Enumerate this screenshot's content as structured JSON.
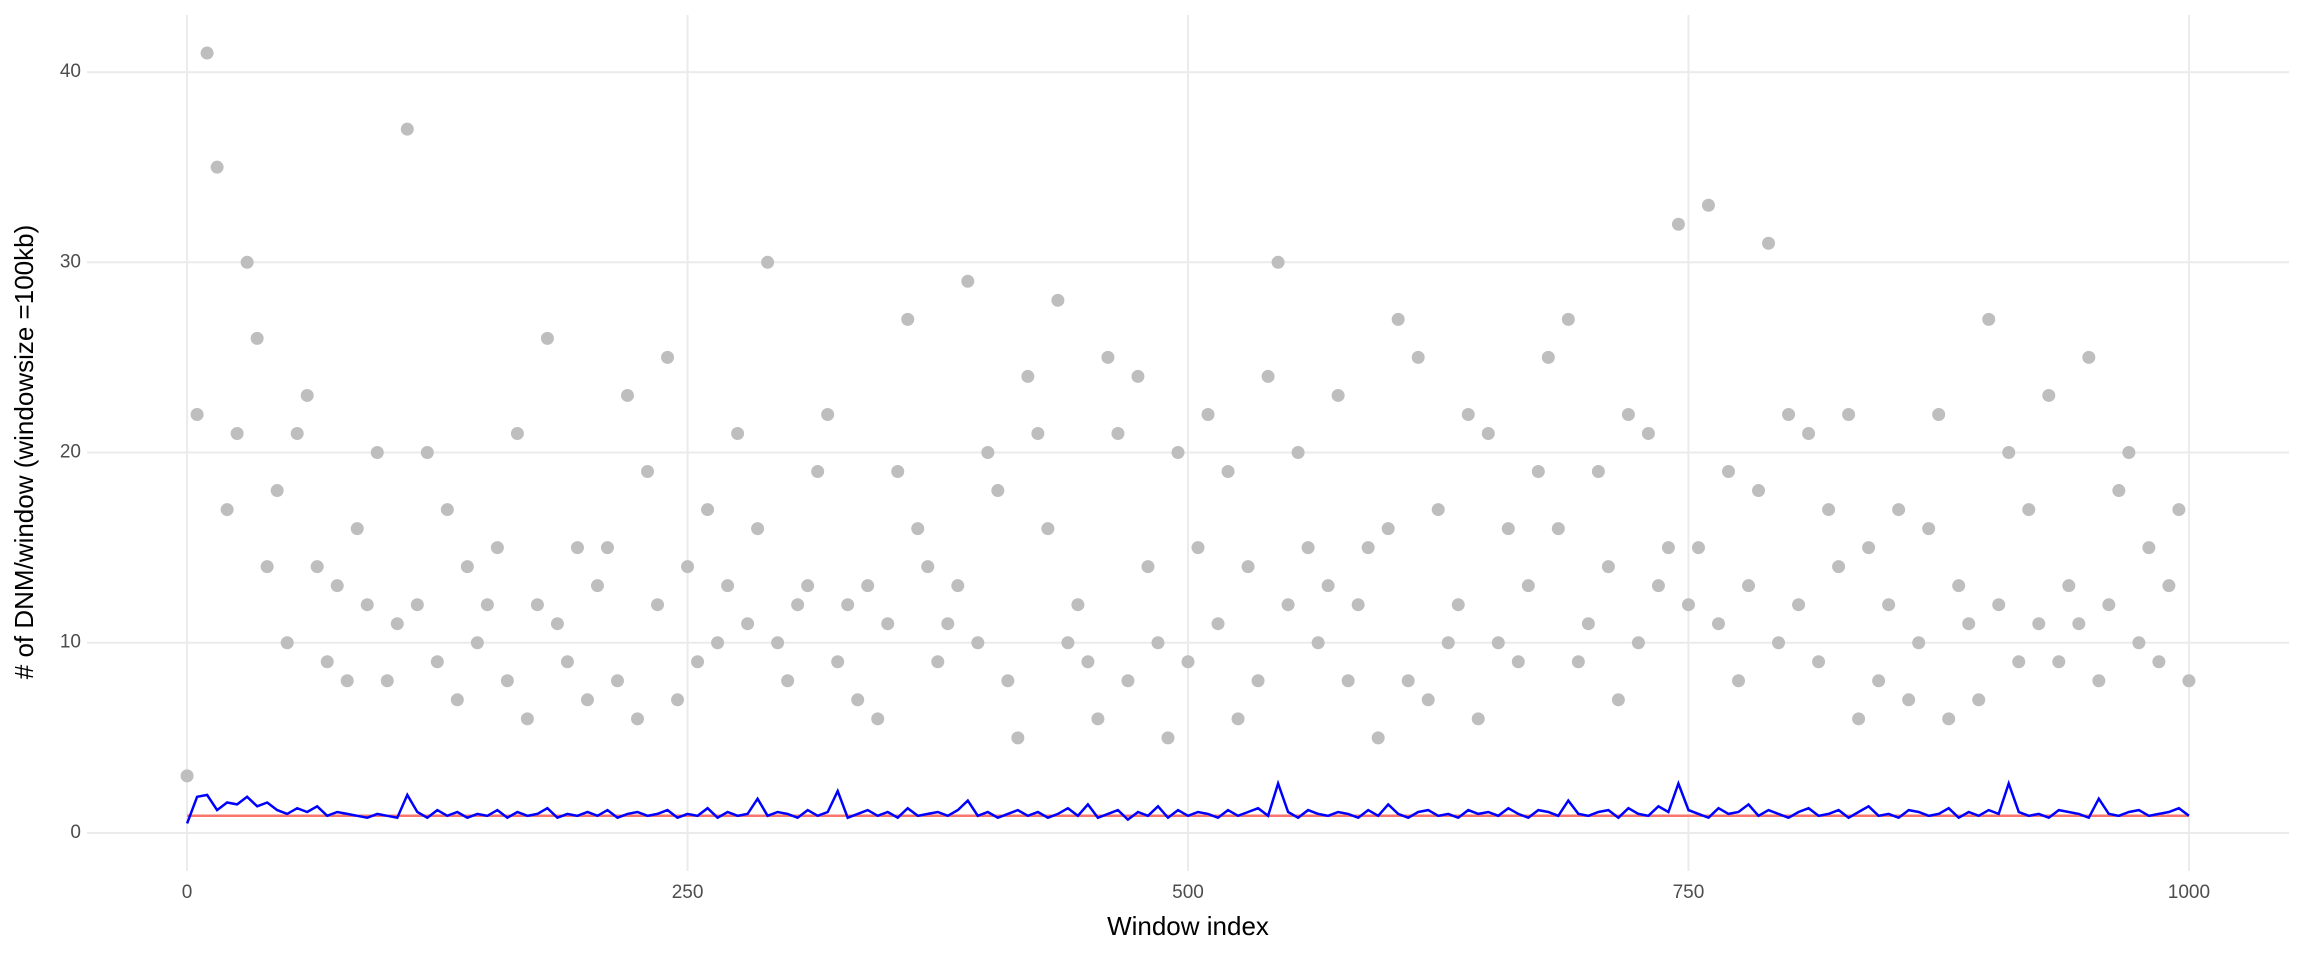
{
  "chart_data": {
    "type": "scatter",
    "x_label": "Window index",
    "y_label": "# of DNM/window (windowsize =100kb)",
    "xlim": [
      -50,
      1050
    ],
    "ylim": [
      -2,
      43
    ],
    "xticks": [
      0,
      250,
      500,
      750,
      1000
    ],
    "yticks": [
      0,
      10,
      20,
      30,
      40
    ],
    "grid": true,
    "series": [
      {
        "kind": "points",
        "color": "#bebebe",
        "x": [
          0,
          5,
          10,
          15,
          20,
          25,
          30,
          35,
          40,
          45,
          50,
          55,
          60,
          65,
          70,
          75,
          80,
          85,
          90,
          95,
          100,
          105,
          110,
          115,
          120,
          125,
          130,
          135,
          140,
          145,
          150,
          155,
          160,
          165,
          170,
          175,
          180,
          185,
          190,
          195,
          200,
          205,
          210,
          215,
          220,
          225,
          230,
          235,
          240,
          245,
          250,
          255,
          260,
          265,
          270,
          275,
          280,
          285,
          290,
          295,
          300,
          305,
          310,
          315,
          320,
          325,
          330,
          335,
          340,
          345,
          350,
          355,
          360,
          365,
          370,
          375,
          380,
          385,
          390,
          395,
          400,
          405,
          410,
          415,
          420,
          425,
          430,
          435,
          440,
          445,
          450,
          455,
          460,
          465,
          470,
          475,
          480,
          485,
          490,
          495,
          500,
          505,
          510,
          515,
          520,
          525,
          530,
          535,
          540,
          545,
          550,
          555,
          560,
          565,
          570,
          575,
          580,
          585,
          590,
          595,
          600,
          605,
          610,
          615,
          620,
          625,
          630,
          635,
          640,
          645,
          650,
          655,
          660,
          665,
          670,
          675,
          680,
          685,
          690,
          695,
          700,
          705,
          710,
          715,
          720,
          725,
          730,
          735,
          740,
          745,
          750,
          755,
          760,
          765,
          770,
          775,
          780,
          785,
          790,
          795,
          800,
          805,
          810,
          815,
          820,
          825,
          830,
          835,
          840,
          845,
          850,
          855,
          860,
          865,
          870,
          875,
          880,
          885,
          890,
          895,
          900,
          905,
          910,
          915,
          920,
          925,
          930,
          935,
          940,
          945,
          950,
          955,
          960,
          965,
          970,
          975,
          980,
          985,
          990,
          995,
          1000
        ],
        "values": [
          3,
          22,
          41,
          35,
          17,
          21,
          30,
          26,
          14,
          18,
          10,
          21,
          23,
          14,
          9,
          13,
          8,
          16,
          12,
          20,
          8,
          11,
          37,
          12,
          20,
          9,
          17,
          7,
          14,
          10,
          12,
          15,
          8,
          21,
          6,
          12,
          26,
          11,
          9,
          15,
          7,
          13,
          15,
          8,
          23,
          6,
          19,
          12,
          25,
          7,
          14,
          9,
          17,
          10,
          13,
          21,
          11,
          16,
          30,
          10,
          8,
          12,
          13,
          19,
          22,
          9,
          12,
          7,
          13,
          6,
          11,
          19,
          27,
          16,
          14,
          9,
          11,
          13,
          29,
          10,
          20,
          18,
          8,
          5,
          24,
          21,
          16,
          28,
          10,
          12,
          9,
          6,
          25,
          21,
          8,
          24,
          14,
          10,
          5,
          20,
          9,
          15,
          22,
          11,
          19,
          6,
          14,
          8,
          24,
          30,
          12,
          20,
          15,
          10,
          13,
          23,
          8,
          12,
          15,
          5,
          16,
          27,
          8,
          25,
          7,
          17,
          10,
          12,
          22,
          6,
          21,
          10,
          16,
          9,
          13,
          19,
          25,
          16,
          27,
          9,
          11,
          19,
          14,
          7,
          22,
          10,
          21,
          13,
          15,
          32,
          12,
          15,
          33,
          11,
          19,
          8,
          13,
          18,
          31,
          10,
          22,
          12,
          21,
          9,
          17,
          14,
          22,
          6,
          15,
          8,
          12,
          17,
          7,
          10,
          16,
          22,
          6,
          13,
          11,
          7,
          27,
          12,
          20,
          9,
          17,
          11,
          23,
          9,
          13,
          11,
          25,
          8,
          12,
          18,
          20,
          10,
          15,
          9,
          13,
          17,
          8
        ]
      },
      {
        "kind": "line",
        "color": "#f8766d",
        "x": [
          0,
          1000
        ],
        "values": [
          0.9,
          0.9
        ]
      },
      {
        "kind": "line",
        "color": "#0000ff",
        "x": [
          0,
          5,
          10,
          15,
          20,
          25,
          30,
          35,
          40,
          45,
          50,
          55,
          60,
          65,
          70,
          75,
          80,
          85,
          90,
          95,
          100,
          105,
          110,
          115,
          120,
          125,
          130,
          135,
          140,
          145,
          150,
          155,
          160,
          165,
          170,
          175,
          180,
          185,
          190,
          195,
          200,
          205,
          210,
          215,
          220,
          225,
          230,
          235,
          240,
          245,
          250,
          255,
          260,
          265,
          270,
          275,
          280,
          285,
          290,
          295,
          300,
          305,
          310,
          315,
          320,
          325,
          330,
          335,
          340,
          345,
          350,
          355,
          360,
          365,
          370,
          375,
          380,
          385,
          390,
          395,
          400,
          405,
          410,
          415,
          420,
          425,
          430,
          435,
          440,
          445,
          450,
          455,
          460,
          465,
          470,
          475,
          480,
          485,
          490,
          495,
          500,
          505,
          510,
          515,
          520,
          525,
          530,
          535,
          540,
          545,
          550,
          555,
          560,
          565,
          570,
          575,
          580,
          585,
          590,
          595,
          600,
          605,
          610,
          615,
          620,
          625,
          630,
          635,
          640,
          645,
          650,
          655,
          660,
          665,
          670,
          675,
          680,
          685,
          690,
          695,
          700,
          705,
          710,
          715,
          720,
          725,
          730,
          735,
          740,
          745,
          750,
          755,
          760,
          765,
          770,
          775,
          780,
          785,
          790,
          795,
          800,
          805,
          810,
          815,
          820,
          825,
          830,
          835,
          840,
          845,
          850,
          855,
          860,
          865,
          870,
          875,
          880,
          885,
          890,
          895,
          900,
          905,
          910,
          915,
          920,
          925,
          930,
          935,
          940,
          945,
          950,
          955,
          960,
          965,
          970,
          975,
          980,
          985,
          990,
          995,
          1000
        ],
        "values": [
          0.5,
          1.9,
          2.0,
          1.2,
          1.6,
          1.5,
          1.9,
          1.4,
          1.6,
          1.2,
          1.0,
          1.3,
          1.1,
          1.4,
          0.9,
          1.1,
          1.0,
          0.9,
          0.8,
          1.0,
          0.9,
          0.8,
          2.0,
          1.1,
          0.8,
          1.2,
          0.9,
          1.1,
          0.8,
          1.0,
          0.9,
          1.2,
          0.8,
          1.1,
          0.9,
          1.0,
          1.3,
          0.8,
          1.0,
          0.9,
          1.1,
          0.9,
          1.2,
          0.8,
          1.0,
          1.1,
          0.9,
          1.0,
          1.2,
          0.8,
          1.0,
          0.9,
          1.3,
          0.8,
          1.1,
          0.9,
          1.0,
          1.8,
          0.9,
          1.1,
          1.0,
          0.8,
          1.2,
          0.9,
          1.1,
          2.2,
          0.8,
          1.0,
          1.2,
          0.9,
          1.1,
          0.8,
          1.3,
          0.9,
          1.0,
          1.1,
          0.9,
          1.2,
          1.7,
          0.9,
          1.1,
          0.8,
          1.0,
          1.2,
          0.9,
          1.1,
          0.8,
          1.0,
          1.3,
          0.9,
          1.5,
          0.8,
          1.0,
          1.2,
          0.7,
          1.1,
          0.9,
          1.4,
          0.8,
          1.2,
          0.9,
          1.1,
          1.0,
          0.8,
          1.2,
          0.9,
          1.1,
          1.3,
          0.9,
          2.6,
          1.1,
          0.8,
          1.2,
          1.0,
          0.9,
          1.1,
          1.0,
          0.8,
          1.2,
          0.9,
          1.5,
          1.0,
          0.8,
          1.1,
          1.2,
          0.9,
          1.0,
          0.8,
          1.2,
          1.0,
          1.1,
          0.9,
          1.3,
          1.0,
          0.8,
          1.2,
          1.1,
          0.9,
          1.7,
          1.0,
          0.9,
          1.1,
          1.2,
          0.8,
          1.3,
          1.0,
          0.9,
          1.4,
          1.1,
          2.6,
          1.2,
          1.0,
          0.8,
          1.3,
          1.0,
          1.1,
          1.5,
          0.9,
          1.2,
          1.0,
          0.8,
          1.1,
          1.3,
          0.9,
          1.0,
          1.2,
          0.8,
          1.1,
          1.4,
          0.9,
          1.0,
          0.8,
          1.2,
          1.1,
          0.9,
          1.0,
          1.3,
          0.8,
          1.1,
          0.9,
          1.2,
          1.0,
          2.6,
          1.1,
          0.9,
          1.0,
          0.8,
          1.2,
          1.1,
          1.0,
          0.8,
          1.8,
          1.0,
          0.9,
          1.1,
          1.2,
          0.9,
          1.0,
          1.1,
          1.3,
          0.9
        ]
      }
    ]
  }
}
